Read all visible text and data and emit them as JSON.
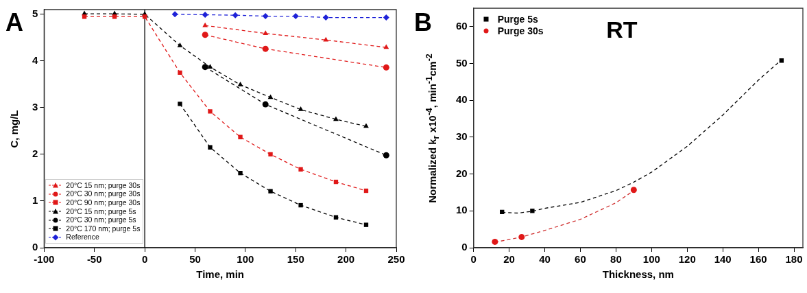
{
  "chart_data": [
    {
      "type": "line",
      "title": "A",
      "xlabel": "Time, min",
      "ylabel": "C, mg/L",
      "xlim": [
        -100,
        250
      ],
      "xticks": [
        -100,
        -50,
        0,
        50,
        100,
        150,
        200,
        250
      ],
      "ylim": [
        0,
        5.1
      ],
      "yticks": [
        0,
        1,
        2,
        3,
        4,
        5
      ],
      "legend": "bottom left",
      "line_style": "dashed",
      "ref_lines": [
        {
          "axis": "x",
          "value": 0,
          "color": "#000000",
          "line_style": "solid"
        }
      ],
      "series": [
        {
          "name": "20°C 15 nm; purge 30s",
          "color": "#e01818",
          "marker": "triangle",
          "x": [
            60,
            120,
            180,
            240
          ],
          "values": [
            4.76,
            4.59,
            4.45,
            4.29
          ]
        },
        {
          "name": "20°C 30 nm; purge 30s",
          "color": "#e01818",
          "marker": "circle",
          "x": [
            60,
            120,
            240
          ],
          "values": [
            4.56,
            4.26,
            3.86
          ]
        },
        {
          "name": "20°C 90 nm; purge 30s",
          "color": "#e01818",
          "marker": "square",
          "x": [
            -60,
            -30,
            0,
            35,
            65,
            95,
            125,
            155,
            190,
            220
          ],
          "values": [
            4.95,
            4.95,
            4.95,
            3.75,
            2.92,
            2.37,
            2.0,
            1.68,
            1.41,
            1.22
          ]
        },
        {
          "name": "20°C 15 nm; purge 5s",
          "color": "#000000",
          "marker": "triangle",
          "x": [
            -60,
            -30,
            0,
            35,
            65,
            95,
            125,
            155,
            190,
            220
          ],
          "values": [
            5.01,
            5.01,
            5.0,
            4.33,
            3.87,
            3.49,
            3.22,
            2.96,
            2.75,
            2.6
          ]
        },
        {
          "name": "20°C 30 nm; purge 5s",
          "color": "#000000",
          "marker": "circle",
          "x": [
            60,
            120,
            240
          ],
          "values": [
            3.87,
            3.07,
            1.98
          ]
        },
        {
          "name": "20°C 170 nm; purge 5s",
          "color": "#000000",
          "marker": "square",
          "x": [
            35,
            65,
            95,
            125,
            155,
            190,
            220
          ],
          "values": [
            3.08,
            2.15,
            1.6,
            1.21,
            0.91,
            0.65,
            0.49
          ]
        },
        {
          "name": "Reference",
          "color": "#1e22d8",
          "marker": "diamond",
          "x": [
            30,
            60,
            90,
            120,
            150,
            180,
            240
          ],
          "values": [
            5.0,
            4.99,
            4.98,
            4.96,
            4.96,
            4.93,
            4.93
          ]
        }
      ]
    },
    {
      "type": "scatter",
      "title": "B",
      "xlabel": "Thickness, nm",
      "ylabel": "Normalized  k$_{r}$ x10$^{-4}$, min$^{-1}$cm$^{-2}$",
      "xlim": [
        0,
        185
      ],
      "xticks": [
        0,
        20,
        40,
        60,
        80,
        100,
        120,
        140,
        160,
        180
      ],
      "ylim": [
        0,
        65
      ],
      "yticks": [
        0,
        10,
        20,
        30,
        40,
        50,
        60
      ],
      "legend": "top left",
      "line_style": "dashed",
      "annotations": [
        "RT"
      ],
      "series": [
        {
          "name": "Purge 5s",
          "color": "#000000",
          "marker": "square",
          "x": [
            16,
            33,
            173
          ],
          "values": [
            9.7,
            10.0,
            50.8
          ]
        },
        {
          "name": "Purge 30s",
          "color": "#e01818",
          "marker": "circle",
          "x": [
            12,
            27,
            90
          ],
          "values": [
            1.6,
            2.9,
            15.7
          ]
        },
        {
          "type": "line",
          "color": "#000000",
          "marker": "none",
          "x": [
            16,
            25,
            33,
            40,
            60,
            80,
            90,
            100,
            120,
            140,
            160,
            173
          ],
          "values": [
            9.6,
            9.4,
            9.9,
            10.7,
            12.3,
            15.5,
            17.8,
            20.5,
            27.5,
            36,
            45.5,
            51
          ]
        },
        {
          "type": "line",
          "color": "#d03030",
          "marker": "none",
          "x": [
            12,
            27,
            40,
            60,
            80,
            90
          ],
          "values": [
            1.5,
            2.9,
            4.7,
            7.7,
            12.2,
            15.5
          ]
        }
      ]
    }
  ]
}
